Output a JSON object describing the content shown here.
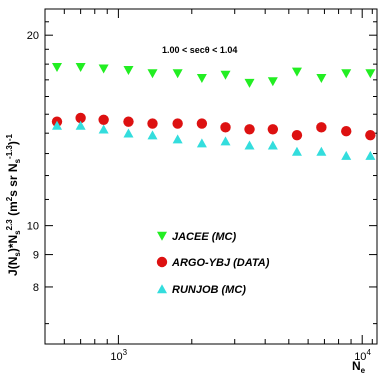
{
  "chart_data": {
    "type": "scatter",
    "title": "",
    "annotation": "1.00 < secθ < 1.04",
    "xlabel": "Ne",
    "ylabel": "J(Ns)*Ns^2.3 (m^2s sr Ns^-1.3)^-1",
    "xscale": "log",
    "yscale": "log",
    "xlim": [
      500,
      11500
    ],
    "ylim": [
      6.5,
      22
    ],
    "x_ticks": [
      {
        "value": 1000,
        "base": "10",
        "exp": "3"
      },
      {
        "value": 10000,
        "base": "10",
        "exp": "4"
      }
    ],
    "y_ticks": [
      {
        "value": 20,
        "label": "20"
      },
      {
        "value": 10,
        "label": "10"
      },
      {
        "value": 9,
        "label": "9"
      },
      {
        "value": 8,
        "label": "8"
      }
    ],
    "legend_position": "bottom-left",
    "series": [
      {
        "name": "JACEE (MC)",
        "marker": "triangle-down",
        "color": "#22ee22",
        "x": [
          560,
          700,
          870,
          1100,
          1380,
          1750,
          2200,
          2750,
          3450,
          4300,
          5400,
          6800,
          8600,
          10800
        ],
        "y": [
          17.8,
          17.8,
          17.7,
          17.6,
          17.4,
          17.4,
          17.1,
          17.3,
          16.8,
          16.9,
          17.5,
          17.1,
          17.4,
          17.4
        ]
      },
      {
        "name": "ARGO-YBJ (DATA)",
        "marker": "circle",
        "color": "#dd1111",
        "x": [
          560,
          700,
          870,
          1100,
          1380,
          1750,
          2200,
          2750,
          3450,
          4300,
          5400,
          6800,
          8600,
          10800
        ],
        "y": [
          14.6,
          14.8,
          14.7,
          14.6,
          14.5,
          14.5,
          14.5,
          14.3,
          14.2,
          14.2,
          13.9,
          14.3,
          14.1,
          13.9
        ]
      },
      {
        "name": "RUNJOB (MC)",
        "marker": "triangle-up",
        "color": "#33dddd",
        "x": [
          560,
          700,
          870,
          1100,
          1380,
          1750,
          2200,
          2750,
          3450,
          4300,
          5400,
          6800,
          8600,
          10800
        ],
        "y": [
          14.4,
          14.4,
          14.2,
          14.0,
          13.9,
          13.7,
          13.5,
          13.6,
          13.4,
          13.4,
          13.1,
          13.1,
          12.9,
          12.9
        ]
      }
    ]
  }
}
